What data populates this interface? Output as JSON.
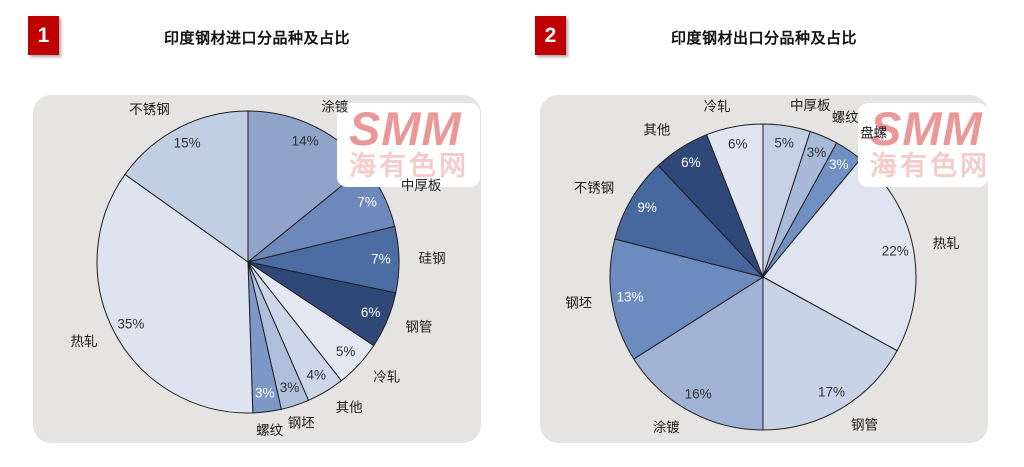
{
  "page": {
    "background": "#ffffff",
    "panel_background": "#E5E4E2",
    "badge_color": "#C00000"
  },
  "watermark": {
    "brand": "SMM",
    "cn_text": "海有色网",
    "color": "#D83A3A"
  },
  "panels": [
    {
      "badge": "1",
      "title": "印度钢材进口分品种及占比"
    },
    {
      "badge": "2",
      "title": "印度钢材出口分品种及占比"
    }
  ],
  "chart_data": [
    {
      "type": "pie",
      "title": "印度钢材进口分品种及占比",
      "unit": "%",
      "start_angle_deg": 0,
      "direction": "clockwise",
      "legend": "none",
      "slices": [
        {
          "label": "涂镀",
          "value": 14,
          "color": "#8FA4C8"
        },
        {
          "label": "中厚板",
          "value": 7,
          "color": "#6D89BC"
        },
        {
          "label": "硅钢",
          "value": 7,
          "color": "#4C6CA4"
        },
        {
          "label": "钢管",
          "value": 6,
          "color": "#2F4878"
        },
        {
          "label": "冷轧",
          "value": 5,
          "color": "#E3E8F3"
        },
        {
          "label": "其他",
          "value": 4,
          "color": "#CDD7E9"
        },
        {
          "label": "钢坯",
          "value": 3,
          "color": "#AFBFDB"
        },
        {
          "label": "螺纹",
          "value": 3,
          "color": "#7D98C6"
        },
        {
          "label": "热轧",
          "value": 35,
          "color": "#DDE4F0"
        },
        {
          "label": "不锈钢",
          "value": 15,
          "color": "#C2CEE3"
        }
      ]
    },
    {
      "type": "pie",
      "title": "印度钢材出口分品种及占比",
      "unit": "%",
      "start_angle_deg": 0,
      "direction": "clockwise",
      "legend": "none",
      "slices": [
        {
          "label": "中厚板",
          "value": 5,
          "color": "#C5D0E4"
        },
        {
          "label": "螺纹",
          "value": 3,
          "color": "#A9BAD8"
        },
        {
          "label": "盘螺",
          "value": 3,
          "color": "#7191C2"
        },
        {
          "label": "热轧",
          "value": 22,
          "color": "#DEE4F0"
        },
        {
          "label": "钢管",
          "value": 17,
          "color": "#C9D3E7"
        },
        {
          "label": "涂镀",
          "value": 16,
          "color": "#A0B3D4"
        },
        {
          "label": "钢坯",
          "value": 13,
          "color": "#6C8CBF"
        },
        {
          "label": "不锈钢",
          "value": 9,
          "color": "#47679F"
        },
        {
          "label": "其他",
          "value": 6,
          "color": "#2F4878"
        },
        {
          "label": "冷轧",
          "value": 6,
          "color": "#E0E6F1"
        }
      ]
    }
  ]
}
